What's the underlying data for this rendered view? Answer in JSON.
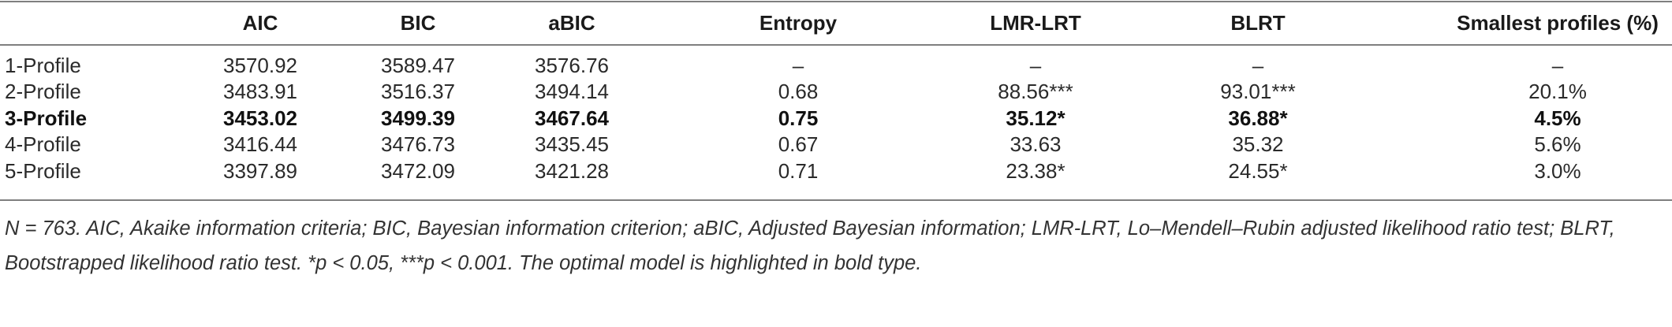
{
  "table": {
    "headers": [
      "",
      "AIC",
      "BIC",
      "aBIC",
      "Entropy",
      "LMR-LRT",
      "BLRT",
      "Smallest profiles (%)"
    ],
    "rows": [
      {
        "label": "1-Profile",
        "aic": "3570.92",
        "bic": "3589.47",
        "abic": "3576.76",
        "entropy": "–",
        "lmr": "–",
        "blrt": "–",
        "smallest": "–",
        "bold": false
      },
      {
        "label": "2-Profile",
        "aic": "3483.91",
        "bic": "3516.37",
        "abic": "3494.14",
        "entropy": "0.68",
        "lmr": "88.56***",
        "blrt": "93.01***",
        "smallest": "20.1%",
        "bold": false
      },
      {
        "label": "3-Profile",
        "aic": "3453.02",
        "bic": "3499.39",
        "abic": "3467.64",
        "entropy": "0.75",
        "lmr": "35.12*",
        "blrt": "36.88*",
        "smallest": "4.5%",
        "bold": true
      },
      {
        "label": "4-Profile",
        "aic": "3416.44",
        "bic": "3476.73",
        "abic": "3435.45",
        "entropy": "0.67",
        "lmr": "33.63",
        "blrt": "35.32",
        "smallest": "5.6%",
        "bold": false
      },
      {
        "label": "5-Profile",
        "aic": "3397.89",
        "bic": "3472.09",
        "abic": "3421.28",
        "entropy": "0.71",
        "lmr": "23.38*",
        "blrt": "24.55*",
        "smallest": "3.0%",
        "bold": false
      }
    ]
  },
  "footnote": "N = 763. AIC, Akaike information criteria; BIC, Bayesian information criterion; aBIC, Adjusted Bayesian information; LMR-LRT, Lo–Mendell–Rubin adjusted likelihood ratio test; BLRT, Bootstrapped likelihood ratio test. *p < 0.05, ***p < 0.001. The optimal model is highlighted in bold type."
}
